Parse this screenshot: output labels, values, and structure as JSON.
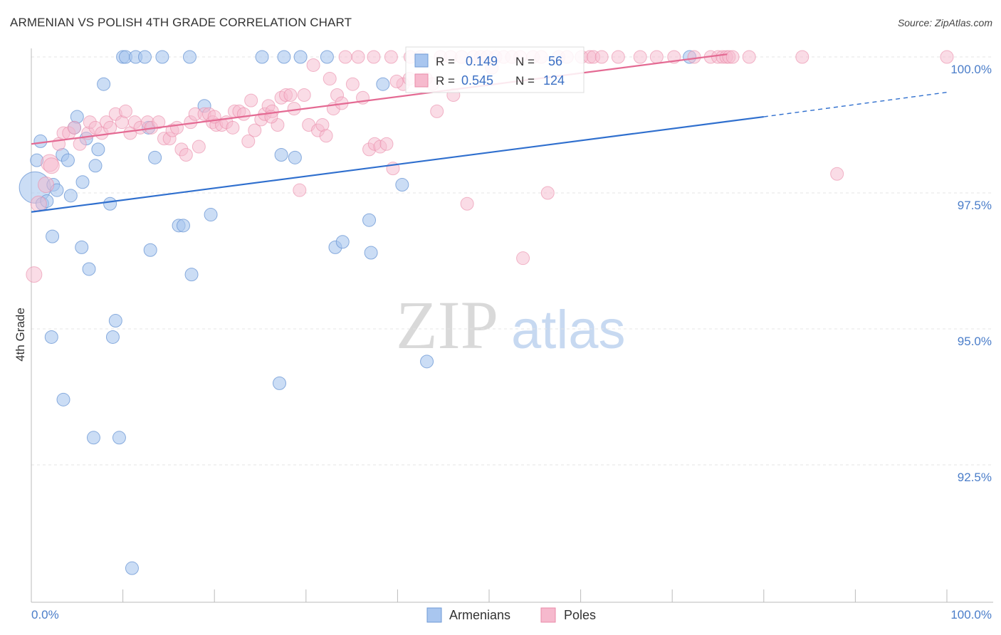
{
  "chart_data": {
    "type": "scatter",
    "title": "ARMENIAN VS POLISH 4TH GRADE CORRELATION CHART",
    "source": "Source: ZipAtlas.com",
    "ylabel": "4th Grade",
    "xlabel": "",
    "xlim": [
      0,
      100
    ],
    "ylim": [
      90.4,
      100.2
    ],
    "x_tick_labels": [
      "0.0%",
      "100.0%"
    ],
    "y_ticks": [
      {
        "value": 100.0,
        "label": "100.0%"
      },
      {
        "value": 97.5,
        "label": "97.5%"
      },
      {
        "value": 95.0,
        "label": "95.0%"
      },
      {
        "value": 92.5,
        "label": "92.5%"
      }
    ],
    "watermark": {
      "zip": "ZIP",
      "atlas": "atlas"
    },
    "legend": [
      {
        "name": "Armenians",
        "r_label": "R =",
        "r": "0.149",
        "n_label": "N =",
        "n": "56"
      },
      {
        "name": "Poles",
        "r_label": "R =",
        "r": "0.545",
        "n_label": "N =",
        "n": "124"
      }
    ],
    "colors": {
      "armenians_fill": "#a9c6ef",
      "armenians_stroke": "#6f9ad6",
      "armenians_line": "#2f6fce",
      "poles_fill": "#f6b9cd",
      "poles_stroke": "#e98aa8",
      "poles_line": "#e46a93",
      "axis_label": "#4a7dc9"
    },
    "series": [
      {
        "name": "Armenians",
        "trend": {
          "x": [
            0,
            80
          ],
          "y": [
            97.15,
            98.9
          ],
          "dashed_to_x": 100,
          "dashed_to_y": 99.35
        },
        "points": [
          [
            0.4,
            97.6,
            22
          ],
          [
            0.6,
            98.1,
            9
          ],
          [
            1.0,
            98.45,
            9
          ],
          [
            1.2,
            97.3,
            9
          ],
          [
            1.7,
            97.35,
            9
          ],
          [
            2.4,
            97.65,
            9
          ],
          [
            2.8,
            97.55,
            9
          ],
          [
            2.3,
            96.7,
            9
          ],
          [
            2.2,
            94.85,
            9
          ],
          [
            3.4,
            98.2,
            9
          ],
          [
            3.5,
            93.7,
            9
          ],
          [
            4.0,
            98.1,
            9
          ],
          [
            4.3,
            97.45,
            9
          ],
          [
            4.7,
            98.7,
            9
          ],
          [
            5.0,
            98.9,
            9
          ],
          [
            5.5,
            96.5,
            9
          ],
          [
            5.6,
            97.7,
            9
          ],
          [
            6.0,
            98.5,
            9
          ],
          [
            6.3,
            96.1,
            9
          ],
          [
            7.0,
            98.0,
            9
          ],
          [
            7.3,
            98.3,
            9
          ],
          [
            6.8,
            93.0,
            9
          ],
          [
            7.9,
            99.5,
            9
          ],
          [
            8.6,
            97.3,
            9
          ],
          [
            8.9,
            94.85,
            9
          ],
          [
            9.2,
            95.15,
            9
          ],
          [
            9.6,
            93.0,
            9
          ],
          [
            10.0,
            100.0,
            9
          ],
          [
            10.3,
            100.0,
            9
          ],
          [
            11.0,
            90.6,
            9
          ],
          [
            11.4,
            100.0,
            9
          ],
          [
            12.4,
            100.0,
            9
          ],
          [
            12.8,
            98.7,
            9
          ],
          [
            13.0,
            96.45,
            9
          ],
          [
            13.5,
            98.15,
            9
          ],
          [
            14.3,
            100.0,
            9
          ],
          [
            16.1,
            96.9,
            9
          ],
          [
            16.6,
            96.9,
            9
          ],
          [
            17.3,
            100.0,
            9
          ],
          [
            17.5,
            96.0,
            9
          ],
          [
            18.9,
            99.1,
            9
          ],
          [
            19.6,
            97.1,
            9
          ],
          [
            25.2,
            100.0,
            9
          ],
          [
            27.1,
            94.0,
            9
          ],
          [
            27.3,
            98.2,
            9
          ],
          [
            27.6,
            100.0,
            9
          ],
          [
            28.8,
            98.15,
            9
          ],
          [
            29.4,
            100.0,
            9
          ],
          [
            33.2,
            96.5,
            9
          ],
          [
            32.3,
            100.0,
            9
          ],
          [
            34.0,
            96.6,
            9
          ],
          [
            36.9,
            97.0,
            9
          ],
          [
            37.1,
            96.4,
            9
          ],
          [
            38.4,
            99.5,
            9
          ],
          [
            40.5,
            97.65,
            9
          ],
          [
            43.2,
            94.4,
            9
          ],
          [
            71.9,
            100.0,
            9
          ]
        ]
      },
      {
        "name": "Poles",
        "trend": {
          "x": [
            0,
            76
          ],
          "y": [
            98.4,
            100.05
          ]
        },
        "points": [
          [
            0.3,
            96.0,
            11
          ],
          [
            0.8,
            97.3,
            11
          ],
          [
            1.6,
            97.65,
            11
          ],
          [
            2.0,
            98.05,
            12
          ],
          [
            2.2,
            98.0,
            11
          ],
          [
            3.0,
            98.4,
            9
          ],
          [
            3.5,
            98.6,
            9
          ],
          [
            4.1,
            98.6,
            9
          ],
          [
            4.7,
            98.7,
            9
          ],
          [
            5.3,
            98.4,
            9
          ],
          [
            6.2,
            98.6,
            9
          ],
          [
            6.4,
            98.8,
            9
          ],
          [
            7.0,
            98.7,
            9
          ],
          [
            7.7,
            98.6,
            9
          ],
          [
            8.2,
            98.8,
            9
          ],
          [
            8.6,
            98.7,
            9
          ],
          [
            9.2,
            98.95,
            9
          ],
          [
            9.9,
            98.8,
            9
          ],
          [
            10.3,
            99.0,
            9
          ],
          [
            10.8,
            98.6,
            9
          ],
          [
            11.3,
            98.8,
            9
          ],
          [
            11.9,
            98.7,
            9
          ],
          [
            12.7,
            98.8,
            9
          ],
          [
            13.1,
            98.7,
            9
          ],
          [
            13.9,
            98.8,
            9
          ],
          [
            14.5,
            98.5,
            9
          ],
          [
            15.1,
            98.5,
            9
          ],
          [
            15.4,
            98.65,
            9
          ],
          [
            15.9,
            98.7,
            9
          ],
          [
            16.4,
            98.3,
            9
          ],
          [
            16.9,
            98.2,
            9
          ],
          [
            17.4,
            98.8,
            9
          ],
          [
            17.9,
            98.95,
            9
          ],
          [
            18.3,
            98.35,
            9
          ],
          [
            18.9,
            98.95,
            9
          ],
          [
            19.4,
            98.95,
            9
          ],
          [
            19.8,
            98.8,
            9
          ],
          [
            20.2,
            98.75,
            9
          ],
          [
            20.8,
            98.75,
            9
          ],
          [
            21.3,
            98.8,
            9
          ],
          [
            22.0,
            98.7,
            9
          ],
          [
            22.2,
            99.0,
            9
          ],
          [
            22.7,
            99.0,
            9
          ],
          [
            23.2,
            98.95,
            9
          ],
          [
            23.7,
            98.45,
            9
          ],
          [
            24.0,
            99.2,
            9
          ],
          [
            24.4,
            98.65,
            9
          ],
          [
            25.1,
            98.85,
            9
          ],
          [
            25.5,
            98.95,
            9
          ],
          [
            25.9,
            99.1,
            9
          ],
          [
            26.3,
            99.0,
            9
          ],
          [
            26.9,
            98.75,
            9
          ],
          [
            27.3,
            99.25,
            9
          ],
          [
            27.8,
            99.3,
            9
          ],
          [
            28.3,
            99.3,
            9
          ],
          [
            28.7,
            99.05,
            9
          ],
          [
            29.3,
            97.55,
            9
          ],
          [
            29.8,
            99.3,
            9
          ],
          [
            30.3,
            98.75,
            9
          ],
          [
            30.8,
            99.85,
            9
          ],
          [
            31.3,
            98.65,
            9
          ],
          [
            31.8,
            98.75,
            9
          ],
          [
            32.2,
            98.55,
            9
          ],
          [
            32.6,
            99.6,
            9
          ],
          [
            33.0,
            99.05,
            9
          ],
          [
            33.4,
            99.3,
            9
          ],
          [
            33.9,
            99.15,
            9
          ],
          [
            34.3,
            100.0,
            9
          ],
          [
            35.1,
            99.5,
            9
          ],
          [
            35.7,
            100.0,
            9
          ],
          [
            36.2,
            99.25,
            9
          ],
          [
            36.9,
            98.3,
            9
          ],
          [
            37.4,
            100.0,
            9
          ],
          [
            37.5,
            98.4,
            9
          ],
          [
            38.1,
            98.35,
            9
          ],
          [
            38.8,
            98.4,
            9
          ],
          [
            39.3,
            100.0,
            9
          ],
          [
            39.5,
            97.95,
            9
          ],
          [
            40.6,
            99.5,
            9
          ],
          [
            41.4,
            100.0,
            9
          ],
          [
            42.5,
            100.0,
            9
          ],
          [
            43.1,
            99.6,
            9
          ],
          [
            43.8,
            99.5,
            9
          ],
          [
            44.7,
            100.0,
            9
          ],
          [
            45.8,
            100.0,
            9
          ],
          [
            46.1,
            99.3,
            9
          ],
          [
            47.0,
            100.0,
            9
          ],
          [
            47.6,
            97.3,
            9
          ],
          [
            48.3,
            100.0,
            9
          ],
          [
            49.1,
            100.0,
            9
          ],
          [
            49.8,
            100.0,
            9
          ],
          [
            50.7,
            100.0,
            9
          ],
          [
            51.6,
            100.0,
            9
          ],
          [
            52.5,
            100.0,
            9
          ],
          [
            53.4,
            100.0,
            9
          ],
          [
            53.7,
            96.3,
            9
          ],
          [
            54.8,
            100.0,
            9
          ],
          [
            55.7,
            100.0,
            9
          ],
          [
            56.4,
            97.5,
            9
          ],
          [
            57.6,
            100.0,
            9
          ],
          [
            58.5,
            100.0,
            9
          ],
          [
            60.1,
            100.0,
            9
          ],
          [
            61.0,
            100.0,
            9
          ],
          [
            61.4,
            100.0,
            9
          ],
          [
            62.3,
            100.0,
            9
          ],
          [
            64.1,
            100.0,
            9
          ],
          [
            66.5,
            100.0,
            9
          ],
          [
            68.3,
            100.0,
            9
          ],
          [
            70.2,
            100.0,
            9
          ],
          [
            72.4,
            100.0,
            9
          ],
          [
            74.2,
            100.0,
            9
          ],
          [
            75.0,
            100.0,
            9
          ],
          [
            75.5,
            100.0,
            9
          ],
          [
            75.9,
            100.0,
            9
          ],
          [
            76.2,
            100.0,
            9
          ],
          [
            76.6,
            100.0,
            9
          ],
          [
            78.4,
            100.0,
            9
          ],
          [
            84.2,
            100.0,
            9
          ],
          [
            88.0,
            97.85,
            9
          ],
          [
            100.0,
            100.0,
            9
          ],
          [
            44.3,
            99.0,
            9
          ],
          [
            41.3,
            99.6,
            9
          ],
          [
            50.3,
            99.8,
            9
          ],
          [
            39.9,
            99.55,
            9
          ],
          [
            26.2,
            98.9,
            9
          ],
          [
            20.0,
            98.9,
            9
          ]
        ]
      }
    ]
  }
}
